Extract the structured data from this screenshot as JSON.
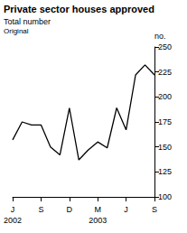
{
  "chart_data": {
    "type": "line",
    "title": "Private sector houses approved",
    "subtitle": "Total number",
    "annotations": [
      "Original"
    ],
    "ylabel": "no.",
    "categories": [
      "J\n2002",
      null,
      null,
      "S",
      null,
      null,
      "D",
      null,
      null,
      "M\n2003",
      null,
      null,
      "J",
      null,
      null,
      "S"
    ],
    "values": [
      157,
      175,
      172,
      172,
      150,
      142,
      189,
      137,
      147,
      155,
      149,
      189,
      167,
      222,
      232,
      222
    ],
    "color": "#000000",
    "ylim": [
      100,
      250
    ],
    "yticks": [
      100,
      125,
      150,
      175,
      200,
      225,
      250
    ],
    "grid": false
  }
}
